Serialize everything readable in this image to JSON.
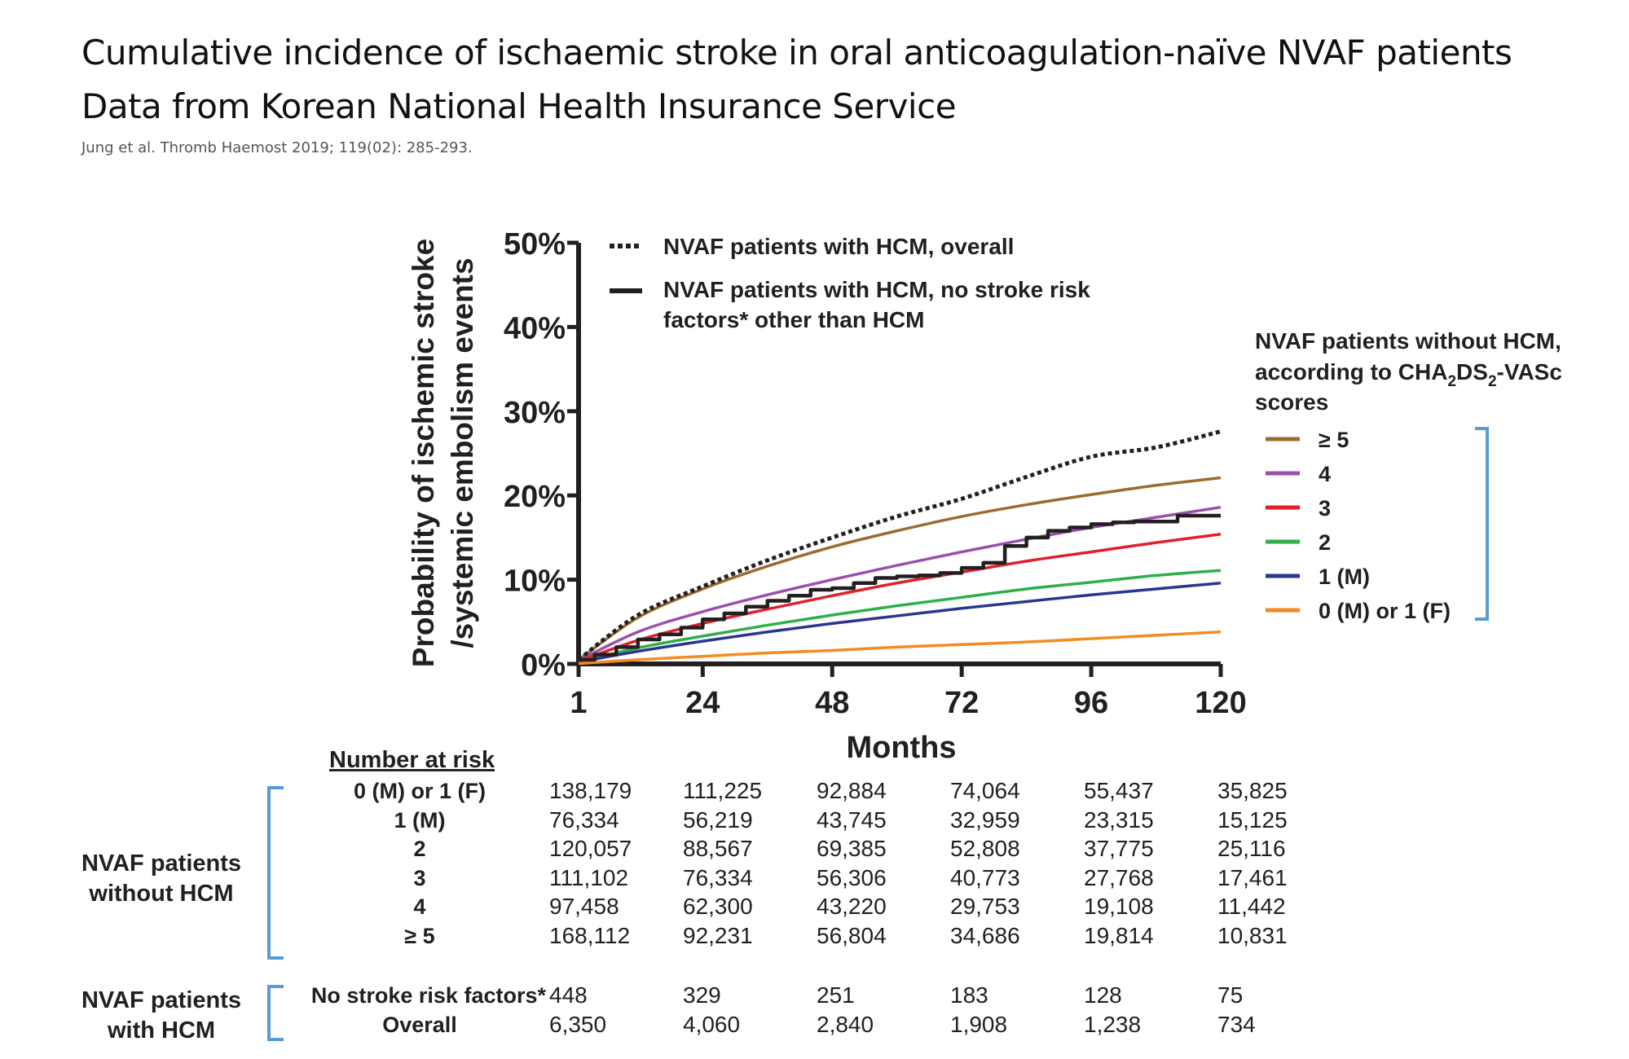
{
  "header": {
    "title_line1": "Cumulative incidence of ischaemic stroke in oral anticoagulation-naïve NVAF patients",
    "title_line2": "Data from Korean National Health Insurance Service",
    "citation": "Jung et al. Thromb Haemost 2019; 119(02): 285-293."
  },
  "chart_data": {
    "type": "line",
    "xlabel": "Months",
    "ylabel_line1": "Probability of ischemic stroke",
    "ylabel_line2": "/systemic embolism events",
    "xlim": [
      1,
      120
    ],
    "ylim": [
      0,
      50
    ],
    "x_ticks": [
      1,
      24,
      48,
      72,
      96,
      120
    ],
    "y_ticks": [
      0,
      10,
      20,
      30,
      40,
      50
    ],
    "y_tick_labels": [
      "0%",
      "10%",
      "20%",
      "30%",
      "40%",
      "50%"
    ],
    "grid": false,
    "legend_hcm": [
      {
        "label": "NVAF patients with HCM, overall",
        "style": "dotted",
        "color": "#231f20"
      },
      {
        "label_line1": "NVAF patients with HCM, no stroke risk",
        "label_line2": "factors* other than HCM",
        "style": "solid",
        "color": "#231f20"
      }
    ],
    "legend_nohcm_title_line1": "NVAF patients without HCM,",
    "legend_nohcm_title_line2_pre": "according to CHA",
    "legend_nohcm_title_line2_sub1": "2",
    "legend_nohcm_title_line2_mid": "DS",
    "legend_nohcm_title_line2_sub2": "2",
    "legend_nohcm_title_line2_post": "-VASc",
    "legend_nohcm_title_line3": "scores",
    "series": [
      {
        "name": "NVAF patients with HCM, overall",
        "style": "dotted",
        "color": "#231f20",
        "x": [
          1,
          12,
          24,
          36,
          48,
          60,
          72,
          84,
          96,
          108,
          120
        ],
        "y": [
          0.5,
          5.8,
          9.2,
          12.3,
          15.0,
          17.5,
          19.6,
          22.2,
          24.6,
          25.7,
          27.6
        ]
      },
      {
        "name": "NVAF patients with HCM, no stroke risk factors* other than HCM",
        "style": "step",
        "color": "#231f20",
        "x": [
          1,
          4,
          8,
          12,
          16,
          20,
          24,
          28,
          32,
          36,
          40,
          44,
          48,
          52,
          56,
          60,
          64,
          68,
          72,
          76,
          80,
          84,
          88,
          92,
          96,
          100,
          104,
          108,
          112,
          120
        ],
        "y": [
          0.5,
          1.1,
          2.0,
          2.9,
          3.5,
          4.3,
          5.3,
          6.0,
          6.8,
          7.5,
          8.1,
          8.8,
          9.0,
          9.6,
          10.2,
          10.4,
          10.5,
          10.8,
          11.4,
          12.0,
          14.0,
          15.0,
          15.8,
          16.2,
          16.6,
          16.8,
          16.9,
          16.9,
          17.6,
          17.6
        ]
      },
      {
        "name": "≥ 5",
        "style": "solid",
        "color": "#9c6b30",
        "x": [
          1,
          12,
          24,
          36,
          48,
          60,
          72,
          84,
          96,
          108,
          120
        ],
        "y": [
          0.5,
          5.5,
          8.9,
          11.6,
          13.9,
          15.8,
          17.5,
          18.9,
          20.1,
          21.2,
          22.1
        ]
      },
      {
        "name": "4",
        "style": "solid",
        "color": "#9b4fad",
        "x": [
          1,
          12,
          24,
          36,
          48,
          60,
          72,
          84,
          96,
          108,
          120
        ],
        "y": [
          0.4,
          3.8,
          6.2,
          8.2,
          10.0,
          11.7,
          13.3,
          14.8,
          16.2,
          17.4,
          18.6
        ]
      },
      {
        "name": "3",
        "style": "solid",
        "color": "#e0202a",
        "x": [
          1,
          12,
          24,
          36,
          48,
          60,
          72,
          84,
          96,
          108,
          120
        ],
        "y": [
          0.3,
          2.8,
          4.8,
          6.5,
          8.1,
          9.6,
          10.9,
          12.2,
          13.3,
          14.4,
          15.4
        ]
      },
      {
        "name": "2",
        "style": "solid",
        "color": "#2eaf4a",
        "x": [
          1,
          12,
          24,
          36,
          48,
          60,
          72,
          84,
          96,
          108,
          120
        ],
        "y": [
          0.2,
          1.9,
          3.3,
          4.6,
          5.8,
          6.9,
          7.9,
          8.9,
          9.7,
          10.5,
          11.1
        ]
      },
      {
        "name": "1 (M)",
        "style": "solid",
        "color": "#2a3590",
        "x": [
          1,
          12,
          24,
          36,
          48,
          60,
          72,
          84,
          96,
          108,
          120
        ],
        "y": [
          0.2,
          1.5,
          2.7,
          3.8,
          4.8,
          5.7,
          6.6,
          7.4,
          8.2,
          8.9,
          9.6
        ]
      },
      {
        "name": "0 (M) or 1 (F)",
        "style": "solid",
        "color": "#f58a1f",
        "x": [
          1,
          12,
          24,
          36,
          48,
          60,
          72,
          84,
          96,
          108,
          120
        ],
        "y": [
          0.05,
          0.5,
          0.9,
          1.3,
          1.6,
          2.0,
          2.3,
          2.6,
          3.0,
          3.4,
          3.8
        ]
      }
    ]
  },
  "risk_table": {
    "heading": "Number at risk",
    "group_without_hcm_line1": "NVAF patients",
    "group_without_hcm_line2": "without HCM",
    "group_with_hcm_line1": "NVAF patients",
    "group_with_hcm_line2": "with HCM",
    "rows": [
      {
        "label": "0 (M) or 1 (F)",
        "values": [
          "138,179",
          "111,225",
          "92,884",
          "74,064",
          "55,437",
          "35,825"
        ]
      },
      {
        "label": "1 (M)",
        "values": [
          "76,334",
          "56,219",
          "43,745",
          "32,959",
          "23,315",
          "15,125"
        ]
      },
      {
        "label": "2",
        "values": [
          "120,057",
          "88,567",
          "69,385",
          "52,808",
          "37,775",
          "25,116"
        ]
      },
      {
        "label": "3",
        "values": [
          "111,102",
          "76,334",
          "56,306",
          "40,773",
          "27,768",
          "17,461"
        ]
      },
      {
        "label": "4",
        "values": [
          "97,458",
          "62,300",
          "43,220",
          "29,753",
          "19,108",
          "11,442"
        ]
      },
      {
        "label": "≥ 5",
        "values": [
          "168,112",
          "92,231",
          "56,804",
          "34,686",
          "19,814",
          "10,831"
        ]
      },
      {
        "label": "No stroke risk factors*",
        "values": [
          "448",
          "329",
          "251",
          "183",
          "128",
          "75"
        ]
      },
      {
        "label": "Overall",
        "values": [
          "6,350",
          "4,060",
          "2,840",
          "1,908",
          "1,238",
          "734"
        ]
      }
    ]
  },
  "colors": {
    "axis": "#231f20",
    "bracket": "#5b9bd5"
  }
}
